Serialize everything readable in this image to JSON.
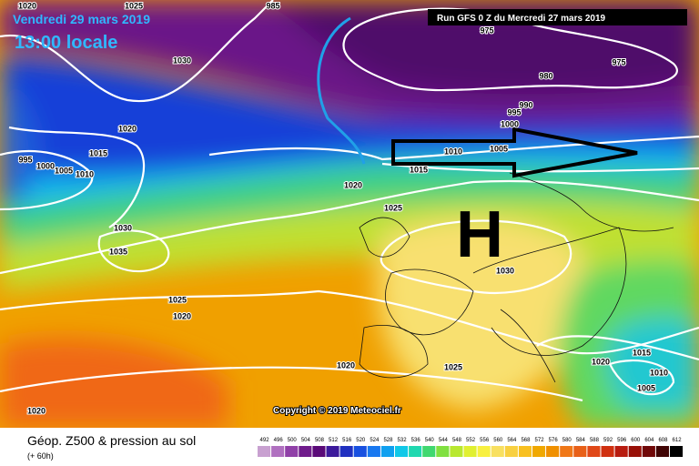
{
  "header": {
    "date": "Vendredi 29 mars 2019",
    "time": "13:00 locale",
    "run": "Run GFS 0 Z du Mercredi 27 mars 2019"
  },
  "map": {
    "high_label": "H",
    "copyright": "Copyright © 2019 Meteociel.fr",
    "isobar_labels": [
      1020,
      1025,
      985,
      975,
      1030,
      980,
      975,
      990,
      995,
      1000,
      1020,
      1005,
      1010,
      1015,
      995,
      1000,
      1005,
      1010,
      1015,
      1020,
      1025,
      1030,
      1035,
      1030,
      1025,
      1020,
      1020,
      1025,
      1015,
      1020,
      1010,
      1005,
      1020
    ]
  },
  "footer": {
    "title": "Géop. Z500 & pression au sol",
    "lead": "(+ 60h)"
  },
  "scale": {
    "labels": [
      492,
      496,
      500,
      504,
      508,
      512,
      516,
      520,
      524,
      528,
      532,
      536,
      540,
      544,
      548,
      552,
      556,
      560,
      564,
      568,
      572,
      576,
      580,
      584,
      588,
      592,
      596,
      600,
      604,
      608,
      612
    ],
    "colors": [
      "#c8a0d0",
      "#b070c0",
      "#9040a8",
      "#701c8c",
      "#5a0a78",
      "#3c1a9c",
      "#2030c0",
      "#1850e0",
      "#1878f0",
      "#10a0f0",
      "#10c8e8",
      "#20d8b0",
      "#40d870",
      "#80e040",
      "#b8e830",
      "#e0f030",
      "#f8f040",
      "#f8e060",
      "#f8d040",
      "#f8c020",
      "#f0a800",
      "#f09000",
      "#f07818",
      "#e86018",
      "#e04818",
      "#d03010",
      "#b81c10",
      "#981008",
      "#700808",
      "#400404",
      "#000000"
    ]
  }
}
